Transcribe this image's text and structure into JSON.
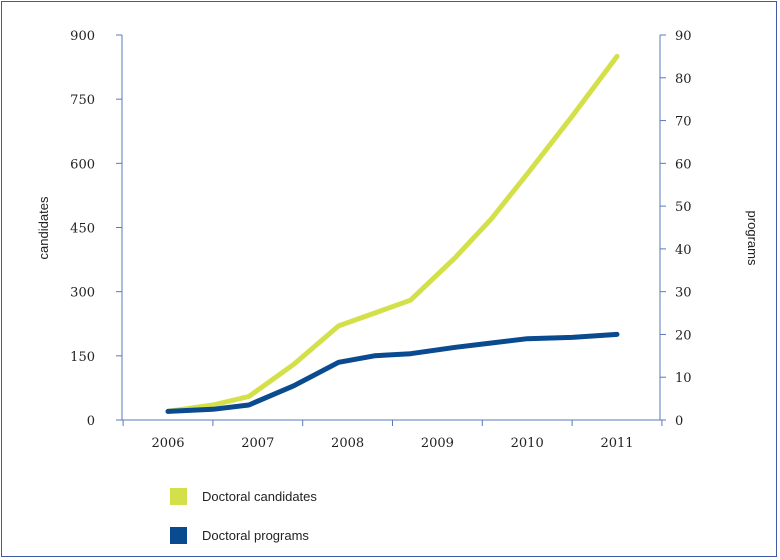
{
  "chart_data": {
    "type": "line",
    "x_categories": [
      "2006",
      "2007",
      "2008",
      "2009",
      "2010",
      "2011"
    ],
    "y_left": {
      "label": "candidates",
      "ticks": [
        0,
        150,
        300,
        450,
        600,
        750,
        900
      ],
      "range": [
        0,
        900
      ]
    },
    "y_right": {
      "label": "programs",
      "ticks": [
        0,
        10,
        20,
        30,
        40,
        50,
        60,
        70,
        80,
        90
      ],
      "range": [
        0,
        90
      ]
    },
    "series": [
      {
        "name": "Doctoral candidates",
        "axis": "left",
        "color": "#d4e04a",
        "points": [
          {
            "x": 2006.0,
            "y": 20
          },
          {
            "x": 2006.5,
            "y": 35
          },
          {
            "x": 2006.9,
            "y": 55
          },
          {
            "x": 2007.4,
            "y": 130
          },
          {
            "x": 2007.9,
            "y": 220
          },
          {
            "x": 2008.3,
            "y": 250
          },
          {
            "x": 2008.7,
            "y": 280
          },
          {
            "x": 2009.2,
            "y": 380
          },
          {
            "x": 2009.6,
            "y": 470
          },
          {
            "x": 2010.0,
            "y": 575
          },
          {
            "x": 2010.5,
            "y": 710
          },
          {
            "x": 2011.0,
            "y": 850
          }
        ]
      },
      {
        "name": "Doctoral programs",
        "axis": "right",
        "color": "#0a4a8f",
        "points": [
          {
            "x": 2006.0,
            "y": 2
          },
          {
            "x": 2006.5,
            "y": 2.5
          },
          {
            "x": 2006.9,
            "y": 3.5
          },
          {
            "x": 2007.4,
            "y": 8
          },
          {
            "x": 2007.9,
            "y": 13.5
          },
          {
            "x": 2008.3,
            "y": 15
          },
          {
            "x": 2008.7,
            "y": 15.5
          },
          {
            "x": 2009.2,
            "y": 17
          },
          {
            "x": 2009.6,
            "y": 18
          },
          {
            "x": 2010.0,
            "y": 19
          },
          {
            "x": 2010.5,
            "y": 19.3
          },
          {
            "x": 2011.0,
            "y": 20
          }
        ]
      }
    ],
    "legend": {
      "position": "bottom-left"
    },
    "grid": false
  }
}
